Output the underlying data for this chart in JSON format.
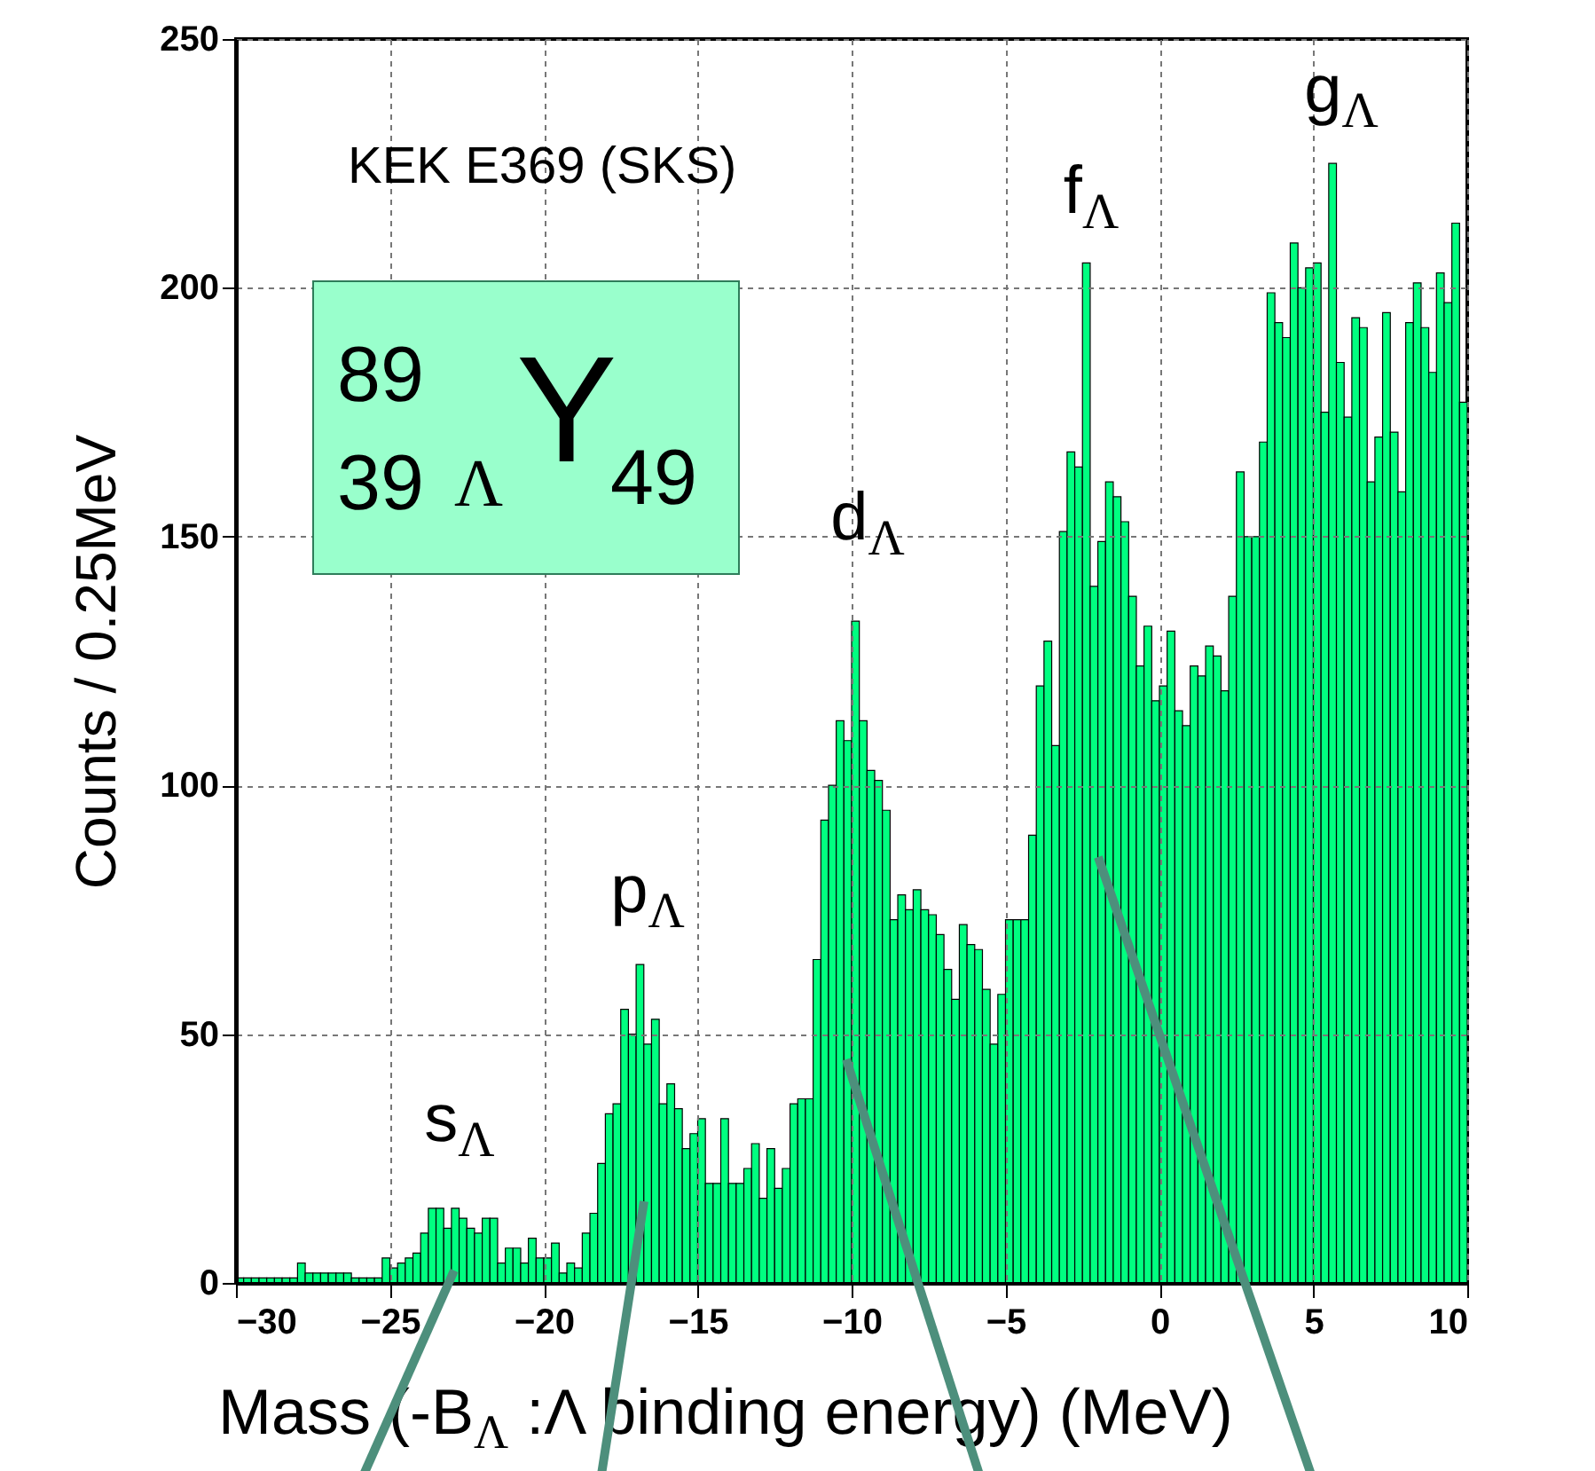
{
  "chart_data": {
    "type": "histogram",
    "ylabel": "Counts / 0.25MeV",
    "xlabel": "Mass  (-B$_{Λ}$ :Λ binding energy) (MeV)",
    "annotations": [
      "KEK E369 (SKS)",
      "89",
      "39",
      "Λ",
      "Y",
      "49",
      "s$_{Λ}$",
      "p$_{Λ}$",
      "d$_{Λ}$",
      "f$_{Λ}$",
      "g$_{Λ}$"
    ],
    "bins": [
      -30,
      -29.75,
      -29.5,
      -29.25,
      -29,
      -28.75,
      -28.5,
      -28.25,
      -28,
      -27.75,
      -27.5,
      -27.25,
      -27,
      -26.75,
      -26.5,
      -26.25,
      -26,
      -25.75,
      -25.5,
      -25.25,
      -25,
      -24.75,
      -24.5,
      -24.25,
      -24,
      -23.75,
      -23.5,
      -23.25,
      -23,
      -22.75,
      -22.5,
      -22.25,
      -22,
      -21.75,
      -21.5,
      -21.25,
      -21,
      -20.75,
      -20.5,
      -20.25,
      -20,
      -19.75,
      -19.5,
      -19.25,
      -19,
      -18.75,
      -18.5,
      -18.25,
      -18,
      -17.75,
      -17.5,
      -17.25,
      -17,
      -16.75,
      -16.5,
      -16.25,
      -16,
      -15.75,
      -15.5,
      -15.25,
      -15,
      -14.75,
      -14.5,
      -14.25,
      -14,
      -13.75,
      -13.5,
      -13.25,
      -13,
      -12.75,
      -12.5,
      -12.25,
      -12,
      -11.75,
      -11.5,
      -11.25,
      -11,
      -10.75,
      -10.5,
      -10.25,
      -10,
      -9.75,
      -9.5,
      -9.25,
      -9,
      -8.75,
      -8.5,
      -8.25,
      -8,
      -7.75,
      -7.5,
      -7.25,
      -7,
      -6.75,
      -6.5,
      -6.25,
      -6,
      -5.75,
      -5.5,
      -5.25,
      -5,
      -4.75,
      -4.5,
      -4.25,
      -4,
      -3.75,
      -3.5,
      -3.25,
      -3,
      -2.75,
      -2.5,
      -2.25,
      -2,
      -1.75,
      -1.5,
      -1.25,
      -1,
      -0.75,
      -0.5,
      -0.25,
      0,
      0.25,
      0.5,
      0.75,
      1,
      1.25,
      1.5,
      1.75,
      2,
      2.25,
      2.5,
      2.75,
      3,
      3.25,
      3.5,
      3.75,
      4,
      4.25,
      4.5,
      4.75,
      5,
      5.25,
      5.5,
      5.75,
      6,
      6.25,
      6.5,
      6.75,
      7,
      7.25,
      7.5,
      7.75,
      8,
      8.25,
      8.5,
      8.75,
      9,
      9.25,
      9.5,
      9.75,
      10
    ],
    "values": [
      1,
      1,
      1,
      1,
      1,
      1,
      1,
      1,
      4,
      2,
      2,
      2,
      2,
      2,
      2,
      1,
      1,
      1,
      1,
      5,
      3,
      4,
      5,
      6,
      10,
      15,
      15,
      11,
      15,
      13,
      11,
      10,
      13,
      13,
      4,
      7,
      7,
      4,
      9,
      5,
      5,
      8,
      2,
      4,
      3,
      10,
      14,
      24,
      34,
      36,
      55,
      50,
      64,
      48,
      53,
      36,
      40,
      35,
      27,
      30,
      33,
      20,
      20,
      33,
      20,
      20,
      23,
      28,
      17,
      27,
      19,
      23,
      36,
      37,
      37,
      65,
      93,
      100,
      113,
      109,
      133,
      113,
      103,
      101,
      95,
      73,
      78,
      75,
      79,
      75,
      74,
      70,
      63,
      57,
      72,
      68,
      67,
      59,
      48,
      58,
      73,
      73,
      73,
      90,
      120,
      129,
      108,
      151,
      167,
      164,
      205,
      140,
      149,
      161,
      158,
      153,
      138,
      124,
      132,
      117,
      120,
      131,
      115,
      112,
      124,
      122,
      128,
      126,
      119,
      138,
      163,
      150,
      150,
      169,
      199,
      193,
      190,
      209,
      200,
      204,
      205,
      175,
      225,
      185,
      174,
      194,
      192,
      161,
      170,
      195,
      171,
      159,
      193,
      201,
      192,
      183,
      203,
      197,
      213,
      177
    ],
    "color": "#00ff80",
    "xlim": [
      -30,
      10
    ],
    "xticks": [
      -30,
      -25,
      -20,
      -15,
      -10,
      -5,
      0,
      5,
      10
    ],
    "ylim": [
      0,
      250
    ],
    "yticks": [
      0,
      50,
      100,
      150,
      200,
      250
    ],
    "grid": true
  }
}
